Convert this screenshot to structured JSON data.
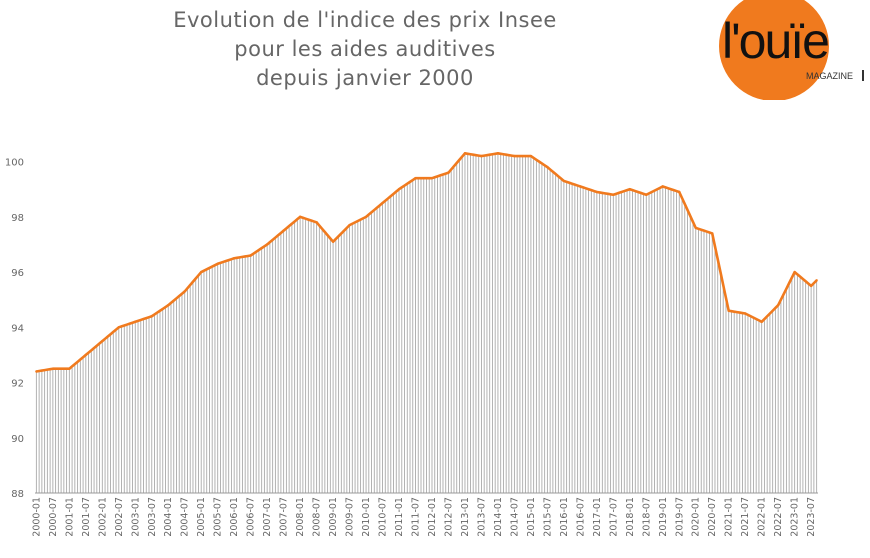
{
  "header": {
    "title_lines": [
      "Evolution de l'indice des prix Insee",
      "pour les aides auditives",
      "depuis janvier 2000"
    ],
    "logo_text": "l'ouïe",
    "logo_sub": "MAGAZINE"
  },
  "colors": {
    "line": "#f07a1e",
    "bars": "#aaaaaa",
    "logo_circle": "#f07a1e"
  },
  "chart_data": {
    "type": "line",
    "title": "Evolution de l'indice des prix Insee pour les aides auditives depuis janvier 2000",
    "xlabel": "",
    "ylabel": "",
    "ylim": [
      88,
      101
    ],
    "yticks": [
      88,
      90,
      92,
      94,
      96,
      98,
      100
    ],
    "xticks": [
      "2000-01",
      "2000-07",
      "2001-01",
      "2001-07",
      "2002-01",
      "2002-07",
      "2003-01",
      "2003-07",
      "2004-01",
      "2004-07",
      "2005-01",
      "2005-07",
      "2006-01",
      "2006-07",
      "2007-01",
      "2007-07",
      "2008-01",
      "2008-07",
      "2009-01",
      "2009-07",
      "2010-01",
      "2010-07",
      "2011-01",
      "2011-07",
      "2012-01",
      "2012-07",
      "2013-01",
      "2013-07",
      "2014-01",
      "2014-07",
      "2015-01",
      "2015-07",
      "2016-01",
      "2016-07",
      "2017-01",
      "2017-07",
      "2018-01",
      "2018-07",
      "2019-01",
      "2019-07",
      "2020-01",
      "2020-07",
      "2021-01",
      "2021-07",
      "2022-01",
      "2022-07",
      "2023-01",
      "2023-07"
    ],
    "grid": false,
    "legend": "none",
    "series": [
      {
        "x": [
          "2000-01",
          "2000-07",
          "2001-01",
          "2001-07",
          "2002-01",
          "2002-07",
          "2003-01",
          "2003-07",
          "2004-01",
          "2004-07",
          "2005-01",
          "2005-07",
          "2006-01",
          "2006-07",
          "2007-01",
          "2007-07",
          "2008-01",
          "2008-07",
          "2009-01",
          "2009-07",
          "2010-01",
          "2010-07",
          "2011-01",
          "2011-07",
          "2012-01",
          "2012-07",
          "2013-01",
          "2013-07",
          "2014-01",
          "2014-07",
          "2015-01",
          "2015-07",
          "2016-01",
          "2016-07",
          "2017-01",
          "2017-07",
          "2018-01",
          "2018-07",
          "2019-01",
          "2019-07",
          "2020-01",
          "2020-07",
          "2021-01",
          "2021-07",
          "2022-01",
          "2022-07",
          "2023-01",
          "2023-07",
          "2023-09"
        ],
        "values": [
          92.4,
          92.5,
          92.5,
          93.0,
          93.5,
          94.0,
          94.2,
          94.4,
          94.8,
          95.3,
          96.0,
          96.3,
          96.5,
          96.6,
          97.0,
          97.5,
          98.0,
          97.8,
          97.1,
          97.7,
          98.0,
          98.5,
          99.0,
          99.4,
          99.4,
          99.6,
          100.3,
          100.2,
          100.3,
          100.2,
          100.2,
          99.8,
          99.3,
          99.1,
          98.9,
          98.8,
          99.0,
          98.8,
          99.1,
          98.9,
          97.6,
          97.4,
          94.6,
          94.5,
          94.2,
          94.8,
          96.0,
          95.5,
          95.7
        ]
      }
    ]
  }
}
